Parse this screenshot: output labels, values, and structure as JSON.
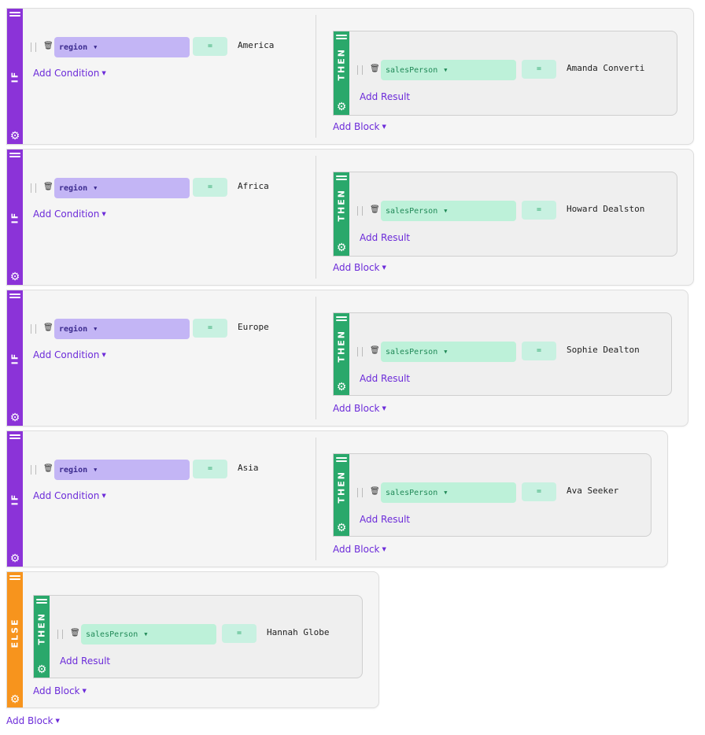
{
  "rules": [
    {
      "condition": {
        "field": "region",
        "operator": "=",
        "value": "America"
      },
      "result": {
        "field": "salesPerson",
        "operator": "=",
        "value": "Amanda Converti"
      }
    },
    {
      "condition": {
        "field": "region",
        "operator": "=",
        "value": "Africa"
      },
      "result": {
        "field": "salesPerson",
        "operator": "=",
        "value": "Howard Dealston"
      }
    },
    {
      "condition": {
        "field": "region",
        "operator": "=",
        "value": "Europe"
      },
      "result": {
        "field": "salesPerson",
        "operator": "=",
        "value": "Sophie Dealton"
      }
    },
    {
      "condition": {
        "field": "region",
        "operator": "=",
        "value": "Asia"
      },
      "result": {
        "field": "salesPerson",
        "operator": "=",
        "value": "Ava Seeker"
      }
    }
  ],
  "else_rule": {
    "result": {
      "field": "salesPerson",
      "operator": "=",
      "value": "Hannah Globe"
    }
  },
  "labels": {
    "if": "IF",
    "then": "THEN",
    "else": "ELSE",
    "add_condition": "Add Condition",
    "add_result": "Add Result",
    "add_block": "Add Block"
  },
  "colors": {
    "if_strip": "#8b33d8",
    "then_strip": "#2aa86b",
    "else_strip": "#f7941d",
    "link": "#6c2bd9",
    "condition_field": "#c3b5f5",
    "result_field": "#bdf1d9"
  }
}
